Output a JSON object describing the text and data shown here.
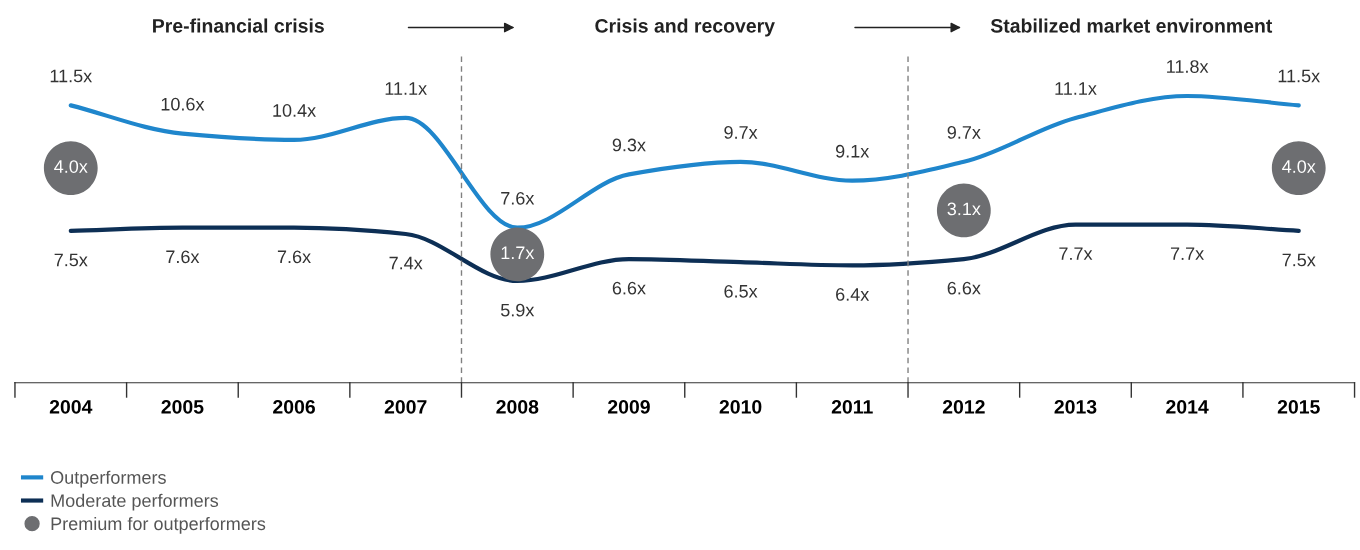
{
  "chart_data": {
    "type": "line",
    "categories": [
      "2004",
      "2005",
      "2006",
      "2007",
      "2008",
      "2009",
      "2010",
      "2011",
      "2012",
      "2013",
      "2014",
      "2015"
    ],
    "tick_labels": "x",
    "grid": false,
    "legend": "bottom left",
    "marker": "none",
    "line_style": "solid",
    "series": [
      {
        "name": "Outperformers",
        "color": "#1f86cc",
        "values": [
          11.5,
          10.6,
          10.4,
          11.1,
          7.6,
          9.3,
          9.7,
          9.1,
          9.7,
          11.1,
          11.8,
          11.5
        ],
        "value_labels": [
          "11.5x",
          "10.6x",
          "10.4x",
          "11.1x",
          "7.6x",
          "9.3x",
          "9.7x",
          "9.1x",
          "9.7x",
          "11.1x",
          "11.8x",
          "11.5x"
        ]
      },
      {
        "name": "Moderate performers",
        "color": "#0d2f55",
        "values": [
          7.5,
          7.6,
          7.6,
          7.4,
          5.9,
          6.6,
          6.5,
          6.4,
          6.6,
          7.7,
          7.7,
          7.5
        ],
        "value_labels": [
          "7.5x",
          "7.6x",
          "7.6x",
          "7.4x",
          "5.9x",
          "6.6x",
          "6.5x",
          "6.4x",
          "6.6x",
          "7.7x",
          "7.7x",
          "7.5x"
        ]
      }
    ],
    "subtitle": [
      "Pre-financial crisis",
      "Crisis and recovery",
      "Stabilized market environment"
    ],
    "annotations": [
      "Premium for outperformers",
      "4.0x",
      "1.7x",
      "3.1x",
      "4.0x"
    ]
  }
}
